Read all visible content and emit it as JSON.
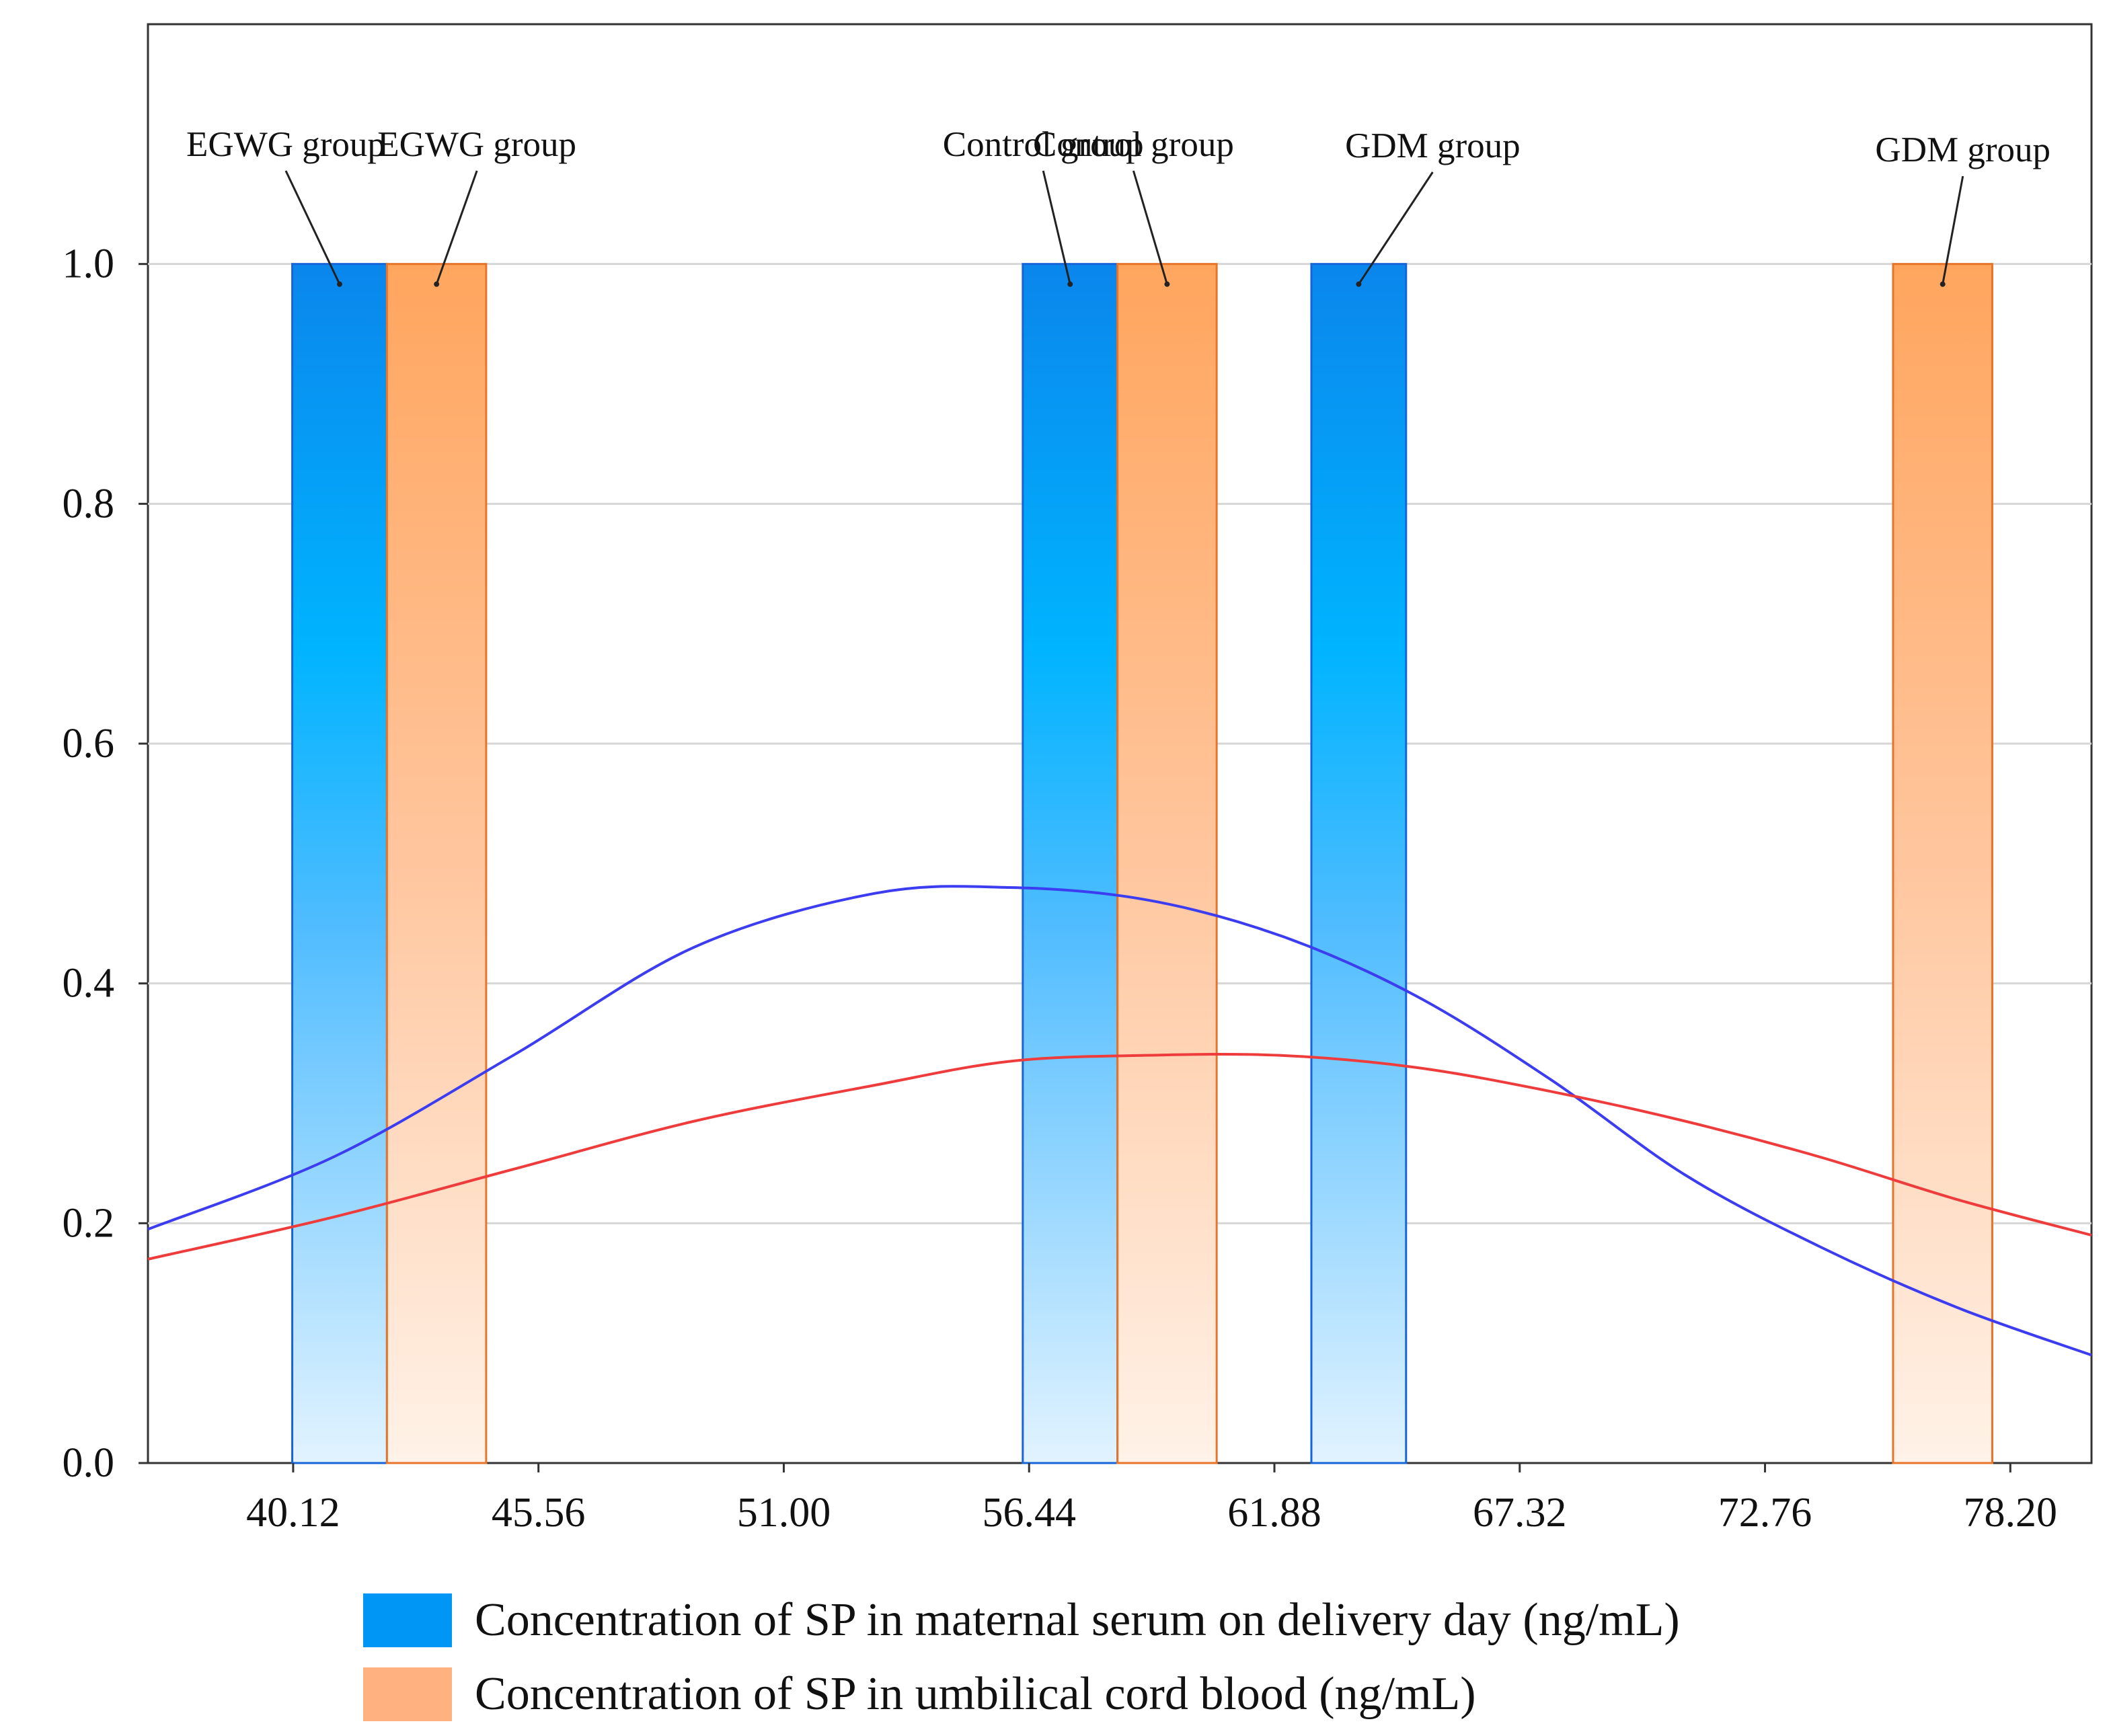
{
  "chart_data": {
    "type": "bar",
    "title": "",
    "xlabel": "",
    "ylabel": "",
    "x_ticks": [
      "40.12",
      "45.56",
      "51.00",
      "56.44",
      "61.88",
      "67.32",
      "72.76",
      "78.20"
    ],
    "y_ticks": [
      "0.0",
      "0.2",
      "0.4",
      "0.6",
      "0.8",
      "1.0"
    ],
    "xlim": [
      36.9,
      80.0
    ],
    "ylim": [
      0.0,
      1.2
    ],
    "grid": "horizontal",
    "legend_position": "bottom",
    "series": [
      {
        "name": "Concentration of SP in maternal serum on delivery day (ng/mL)",
        "color": "#0096f5",
        "bars": [
          {
            "label": "EGWG group",
            "x0": 40.1,
            "x1": 42.2,
            "value": 1.0
          },
          {
            "label": "Control group",
            "x0": 56.3,
            "x1": 58.4,
            "value": 1.0
          },
          {
            "label": "GDM group",
            "x0": 62.7,
            "x1": 64.8,
            "value": 1.0
          }
        ],
        "curve": {
          "color": "#3c3cf0",
          "x": [
            36.9,
            41.0,
            45.0,
            49.0,
            53.0,
            56.0,
            59.0,
            62.0,
            65.0,
            68.0,
            71.0,
            74.0,
            77.0,
            80.0
          ],
          "y": [
            0.195,
            0.255,
            0.34,
            0.43,
            0.475,
            0.48,
            0.47,
            0.44,
            0.39,
            0.32,
            0.24,
            0.18,
            0.13,
            0.09
          ]
        }
      },
      {
        "name": "Concentration of SP in umbilical cord blood (ng/mL)",
        "color": "#ffa868",
        "bars": [
          {
            "label": "EGWG group",
            "x0": 42.2,
            "x1": 44.4,
            "value": 1.0
          },
          {
            "label": "Control group",
            "x0": 58.4,
            "x1": 60.6,
            "value": 1.0
          },
          {
            "label": "GDM group",
            "x0": 75.6,
            "x1": 77.8,
            "value": 1.0
          }
        ],
        "curve": {
          "color": "#ee3c3c",
          "x": [
            36.9,
            41.0,
            45.0,
            49.0,
            53.0,
            56.0,
            59.0,
            62.0,
            65.0,
            68.0,
            71.0,
            74.0,
            77.0,
            80.0
          ],
          "y": [
            0.17,
            0.205,
            0.245,
            0.285,
            0.315,
            0.335,
            0.34,
            0.34,
            0.33,
            0.31,
            0.285,
            0.255,
            0.22,
            0.19
          ]
        }
      }
    ],
    "annotations": [
      {
        "text": "EGWG group",
        "series": 0,
        "bar": 0
      },
      {
        "text": "EGWG group",
        "series": 1,
        "bar": 0
      },
      {
        "text": "Control group",
        "series": 0,
        "bar": 1
      },
      {
        "text": "Control group",
        "series": 1,
        "bar": 1
      },
      {
        "text": "GDM group",
        "series": 0,
        "bar": 2
      },
      {
        "text": "GDM group",
        "series": 1,
        "bar": 2
      }
    ]
  }
}
